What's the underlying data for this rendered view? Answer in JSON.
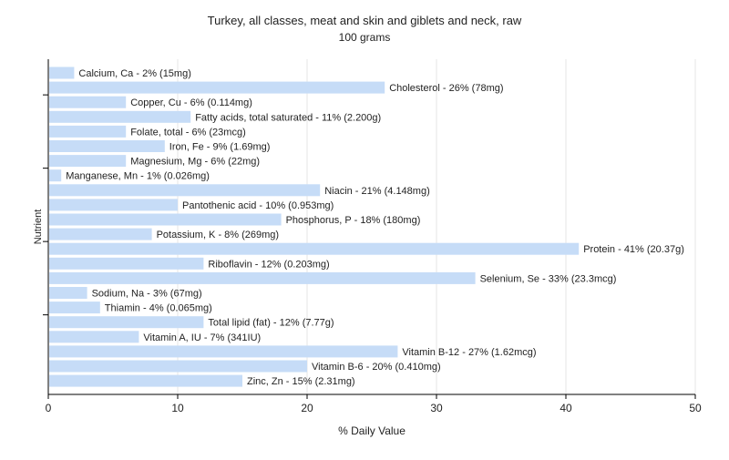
{
  "chart_data": {
    "type": "bar",
    "orientation": "horizontal",
    "title": "Turkey, all classes, meat and skin and giblets and neck, raw",
    "subtitle": "100 grams",
    "xlabel": "% Daily Value",
    "ylabel": "Nutrient",
    "xlim": [
      0,
      50
    ],
    "xticks": [
      "0",
      "10",
      "20",
      "30",
      "40",
      "50"
    ],
    "grid": true,
    "bar_color": "#c6dcf7",
    "grid_color": "#e6e6e6",
    "categories": [
      "Calcium, Ca",
      "Cholesterol",
      "Copper, Cu",
      "Fatty acids, total saturated",
      "Folate, total",
      "Iron, Fe",
      "Magnesium, Mg",
      "Manganese, Mn",
      "Niacin",
      "Pantothenic acid",
      "Phosphorus, P",
      "Potassium, K",
      "Protein",
      "Riboflavin",
      "Selenium, Se",
      "Sodium, Na",
      "Thiamin",
      "Total lipid (fat)",
      "Vitamin A, IU",
      "Vitamin B-12",
      "Vitamin B-6",
      "Zinc, Zn"
    ],
    "values": [
      2,
      26,
      6,
      11,
      6,
      9,
      6,
      1,
      21,
      10,
      18,
      8,
      41,
      12,
      33,
      3,
      4,
      12,
      7,
      27,
      20,
      15
    ],
    "labels": [
      "Calcium, Ca - 2% (15mg)",
      "Cholesterol - 26% (78mg)",
      "Copper, Cu - 6% (0.114mg)",
      "Fatty acids, total saturated - 11% (2.200g)",
      "Folate, total - 6% (23mcg)",
      "Iron, Fe - 9% (1.69mg)",
      "Magnesium, Mg - 6% (22mg)",
      "Manganese, Mn - 1% (0.026mg)",
      "Niacin - 21% (4.148mg)",
      "Pantothenic acid - 10% (0.953mg)",
      "Phosphorus, P - 18% (180mg)",
      "Potassium, K - 8% (269mg)",
      "Protein - 41% (20.37g)",
      "Riboflavin - 12% (0.203mg)",
      "Selenium, Se - 33% (23.3mcg)",
      "Sodium, Na - 3% (67mg)",
      "Thiamin - 4% (0.065mg)",
      "Total lipid (fat) - 12% (7.77g)",
      "Vitamin A, IU - 7% (341IU)",
      "Vitamin B-12 - 27% (1.62mcg)",
      "Vitamin B-6 - 20% (0.410mg)",
      "Zinc, Zn - 15% (2.31mg)"
    ]
  }
}
